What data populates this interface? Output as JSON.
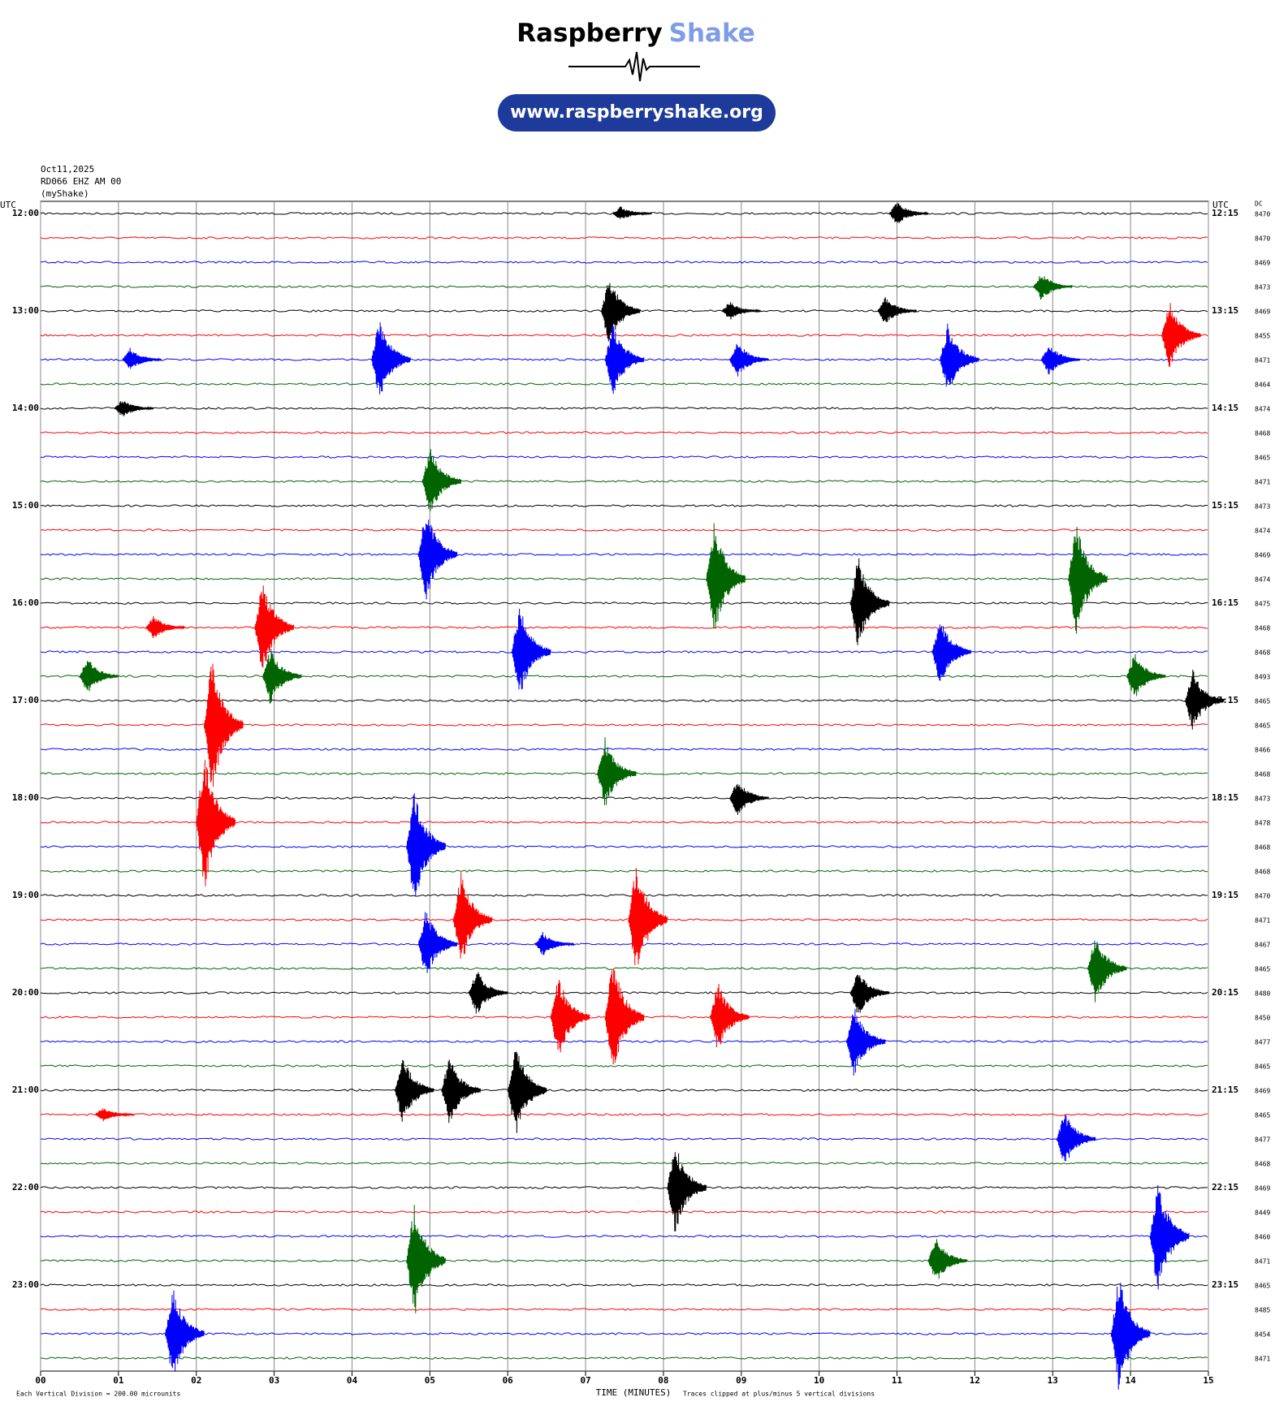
{
  "logo": {
    "brand": "Raspberry",
    "brand_accent": "Shake",
    "url": "www.raspberryshake.org"
  },
  "chart_data": {
    "type": "helicorder",
    "date": "Oct11,2025",
    "station": "RD066 EHZ AM 00",
    "source": "(myShake)",
    "left_unit": "UTC",
    "right_unit": "UTC",
    "dc_label": "DC",
    "xlabel": "TIME (MINUTES)",
    "scale_note": "Each Vertical Division = 200.00 microunits",
    "clip_note": "Traces clipped at plus/minus 5 vertical divisions",
    "xlim": [
      0,
      15
    ],
    "xticks": [
      {
        "value": 0,
        "label": "00"
      },
      {
        "value": 1,
        "label": "01"
      },
      {
        "value": 2,
        "label": "02"
      },
      {
        "value": 3,
        "label": "03"
      },
      {
        "value": 4,
        "label": "04"
      },
      {
        "value": 5,
        "label": "05"
      },
      {
        "value": 6,
        "label": "06"
      },
      {
        "value": 7,
        "label": "07"
      },
      {
        "value": 8,
        "label": "08"
      },
      {
        "value": 9,
        "label": "09"
      },
      {
        "value": 10,
        "label": "10"
      },
      {
        "value": 11,
        "label": "11"
      },
      {
        "value": 12,
        "label": "12"
      },
      {
        "value": 13,
        "label": "13"
      },
      {
        "value": 14,
        "label": "14"
      },
      {
        "value": 15,
        "label": "15"
      }
    ],
    "grid": true,
    "colors": [
      "#000000",
      "#ff0000",
      "#0000ff",
      "#006400"
    ],
    "left_labels": [
      "12:00",
      "13:00",
      "14:00",
      "15:00",
      "16:00",
      "17:00",
      "18:00",
      "19:00",
      "20:00",
      "21:00",
      "22:00",
      "23:00"
    ],
    "right_labels": [
      "12:15",
      "13:15",
      "14:15",
      "15:15",
      "16:15",
      "17:15",
      "18:15",
      "19:15",
      "20:15",
      "21:15",
      "22:15",
      "23:15"
    ],
    "dc": [
      8470,
      8470,
      8469,
      8473,
      8469,
      8455,
      8471,
      8464,
      8474,
      8468,
      8465,
      8471,
      8473,
      8474,
      8469,
      8474,
      8475,
      8468,
      8468,
      8493,
      8465,
      8465,
      8466,
      8468,
      8473,
      8478,
      8468,
      8468,
      8470,
      8471,
      8467,
      8465,
      8480,
      8450,
      8477,
      8465,
      8469,
      8465,
      8477,
      8468,
      8469,
      8449,
      8460,
      8471,
      8465,
      8485,
      8454,
      8471
    ],
    "events": [
      {
        "trace": 0,
        "minute": 7.5,
        "amplitude": 0.3
      },
      {
        "trace": 0,
        "minute": 11.05,
        "amplitude": 0.5
      },
      {
        "trace": 3,
        "minute": 12.9,
        "amplitude": 0.6
      },
      {
        "trace": 4,
        "minute": 7.35,
        "amplitude": 1.5
      },
      {
        "trace": 4,
        "minute": 10.9,
        "amplitude": 0.6
      },
      {
        "trace": 4,
        "minute": 8.9,
        "amplitude": 0.4
      },
      {
        "trace": 5,
        "minute": 14.55,
        "amplitude": 1.5
      },
      {
        "trace": 6,
        "minute": 1.2,
        "amplitude": 0.5
      },
      {
        "trace": 6,
        "minute": 4.4,
        "amplitude": 1.8
      },
      {
        "trace": 6,
        "minute": 7.4,
        "amplitude": 1.6
      },
      {
        "trace": 6,
        "minute": 9.0,
        "amplitude": 0.8
      },
      {
        "trace": 6,
        "minute": 11.7,
        "amplitude": 1.5
      },
      {
        "trace": 6,
        "minute": 13.0,
        "amplitude": 0.7
      },
      {
        "trace": 8,
        "minute": 1.1,
        "amplitude": 0.4
      },
      {
        "trace": 11,
        "minute": 5.05,
        "amplitude": 1.5
      },
      {
        "trace": 14,
        "minute": 5.0,
        "amplitude": 2.0
      },
      {
        "trace": 15,
        "minute": 8.7,
        "amplitude": 2.5
      },
      {
        "trace": 15,
        "minute": 13.35,
        "amplitude": 2.5
      },
      {
        "trace": 16,
        "minute": 10.55,
        "amplitude": 2.0
      },
      {
        "trace": 17,
        "minute": 1.5,
        "amplitude": 0.5
      },
      {
        "trace": 17,
        "minute": 2.9,
        "amplitude": 2.0
      },
      {
        "trace": 18,
        "minute": 6.2,
        "amplitude": 2.0
      },
      {
        "trace": 18,
        "minute": 11.6,
        "amplitude": 1.5
      },
      {
        "trace": 19,
        "minute": 0.65,
        "amplitude": 0.8
      },
      {
        "trace": 19,
        "minute": 3.0,
        "amplitude": 1.2
      },
      {
        "trace": 19,
        "minute": 14.1,
        "amplitude": 1.0
      },
      {
        "trace": 20,
        "minute": 14.85,
        "amplitude": 1.3
      },
      {
        "trace": 21,
        "minute": 2.25,
        "amplitude": 3.0
      },
      {
        "trace": 23,
        "minute": 7.3,
        "amplitude": 1.5
      },
      {
        "trace": 24,
        "minute": 9.0,
        "amplitude": 0.8
      },
      {
        "trace": 25,
        "minute": 2.15,
        "amplitude": 3.0
      },
      {
        "trace": 26,
        "minute": 4.85,
        "amplitude": 2.5
      },
      {
        "trace": 29,
        "minute": 5.45,
        "amplitude": 2.0
      },
      {
        "trace": 29,
        "minute": 7.7,
        "amplitude": 2.5
      },
      {
        "trace": 30,
        "minute": 5.0,
        "amplitude": 1.5
      },
      {
        "trace": 30,
        "minute": 6.5,
        "amplitude": 0.5
      },
      {
        "trace": 31,
        "minute": 13.6,
        "amplitude": 1.5
      },
      {
        "trace": 32,
        "minute": 5.65,
        "amplitude": 1.0
      },
      {
        "trace": 32,
        "minute": 10.55,
        "amplitude": 1.0
      },
      {
        "trace": 33,
        "minute": 6.7,
        "amplitude": 1.8
      },
      {
        "trace": 33,
        "minute": 7.4,
        "amplitude": 2.5
      },
      {
        "trace": 33,
        "minute": 8.75,
        "amplitude": 1.5
      },
      {
        "trace": 34,
        "minute": 10.5,
        "amplitude": 1.5
      },
      {
        "trace": 36,
        "minute": 4.7,
        "amplitude": 1.5
      },
      {
        "trace": 36,
        "minute": 5.3,
        "amplitude": 1.5
      },
      {
        "trace": 36,
        "minute": 6.15,
        "amplitude": 2.0
      },
      {
        "trace": 37,
        "minute": 0.85,
        "amplitude": 0.3
      },
      {
        "trace": 38,
        "minute": 13.2,
        "amplitude": 1.2
      },
      {
        "trace": 40,
        "minute": 8.2,
        "amplitude": 2.0
      },
      {
        "trace": 42,
        "minute": 14.4,
        "amplitude": 2.5
      },
      {
        "trace": 43,
        "minute": 4.85,
        "amplitude": 2.5
      },
      {
        "trace": 43,
        "minute": 11.55,
        "amplitude": 1.0
      },
      {
        "trace": 46,
        "minute": 1.75,
        "amplitude": 2.0
      },
      {
        "trace": 46,
        "minute": 13.9,
        "amplitude": 2.5
      }
    ]
  }
}
